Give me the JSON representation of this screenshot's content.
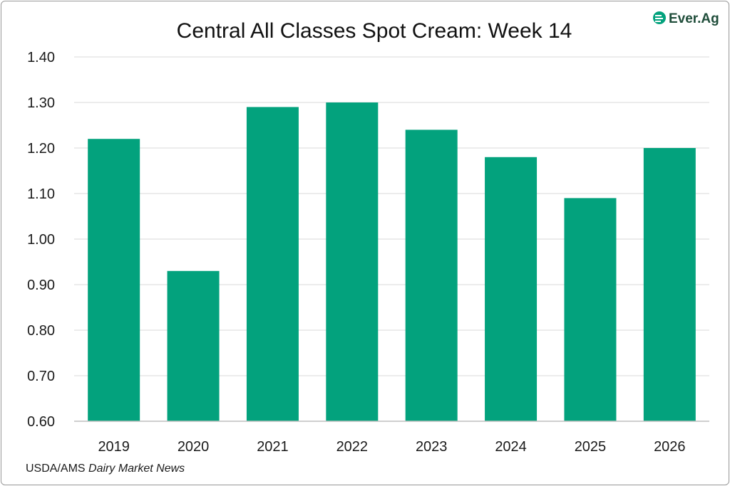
{
  "brand": {
    "logo_text": "Ever.Ag"
  },
  "source": {
    "prefix": "USDA/AMS",
    "publication": "Dairy Market News"
  },
  "colors": {
    "bar": "#03a27d",
    "grid": "#d9d9d9",
    "axis": "#bfbfbf"
  },
  "chart_data": {
    "type": "bar",
    "title": "Central All Classes Spot Cream: Week 14",
    "categories": [
      "2019",
      "2020",
      "2021",
      "2022",
      "2023",
      "2024",
      "2025",
      "2026"
    ],
    "values": [
      1.22,
      0.93,
      1.29,
      1.3,
      1.24,
      1.18,
      1.09,
      1.2
    ],
    "ylim": [
      0.6,
      1.4
    ],
    "yticks": [
      "0.60",
      "0.70",
      "0.80",
      "0.90",
      "1.00",
      "1.10",
      "1.20",
      "1.30",
      "1.40"
    ],
    "grid": true,
    "legend": "none"
  }
}
